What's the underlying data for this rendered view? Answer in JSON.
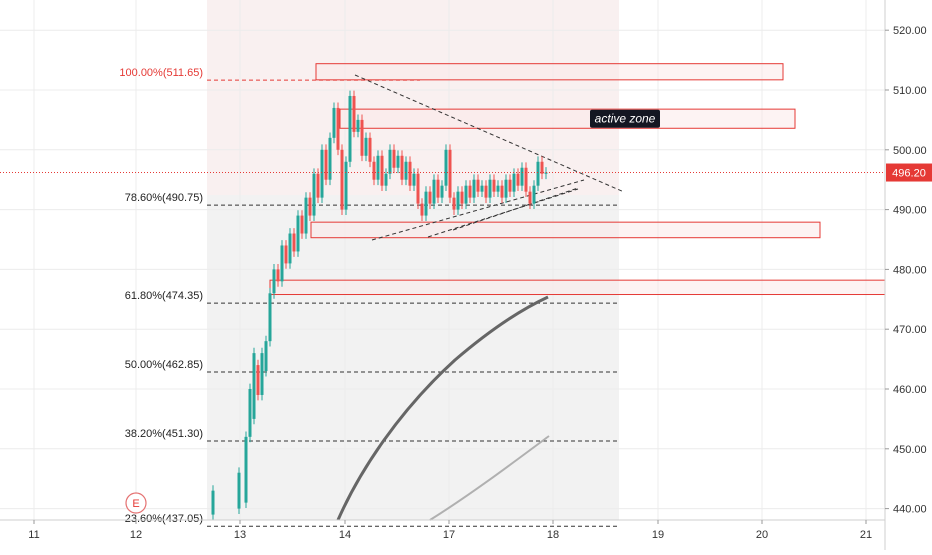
{
  "chart_data": {
    "type": "candlestick",
    "x_labels": [
      "11",
      "12",
      "13",
      "14",
      "17",
      "18",
      "19",
      "20",
      "21"
    ],
    "y_ticks": [
      "520.00",
      "510.00",
      "500.00",
      "490.00",
      "480.00",
      "470.00",
      "460.00",
      "450.00",
      "440.00"
    ],
    "ylim": [
      438.5,
      524.5
    ],
    "last_price": "496.20",
    "last_price_value": 496.2,
    "fib_levels": [
      {
        "label": "100.00%(511.65)",
        "value": 511.65
      },
      {
        "label": "78.60%(490.75)",
        "value": 490.75
      },
      {
        "label": "61.80%(474.35)",
        "value": 474.35
      },
      {
        "label": "50.00%(462.85)",
        "value": 462.85
      },
      {
        "label": "38.20%(451.30)",
        "value": 451.3
      },
      {
        "label": "23.60%(437.05)",
        "value": 437.05
      }
    ],
    "zones": [
      {
        "label": "",
        "low": 511.7,
        "high": 514.4
      },
      {
        "label": "active zone",
        "low": 503.6,
        "high": 506.8
      },
      {
        "label": "",
        "low": 485.3,
        "high": 487.9
      },
      {
        "label": "",
        "low": 475.8,
        "high": 478.2
      }
    ],
    "event_marker": "E",
    "colors": {
      "up": "#26a69a",
      "down": "#ef5350",
      "zone": "#e53935",
      "last_price": "#e53935",
      "ma_slow": "#666666",
      "ma_fast": "#b0b0b0",
      "session_shade": "#f2f2f2"
    },
    "grid": true
  }
}
